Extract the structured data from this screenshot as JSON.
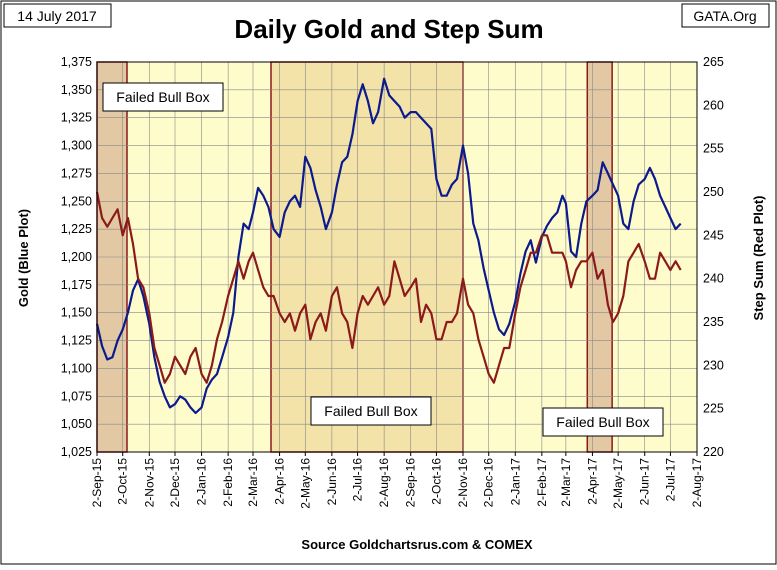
{
  "header": {
    "date_label": "14 July 2017",
    "source_tag": "GATA.Org"
  },
  "footer": {
    "source": "Source Goldchartsrus.com & COMEX"
  },
  "chart_data": {
    "type": "line",
    "title": "Daily Gold and Step Sum",
    "ylabel": "Gold   (Blue Plot)",
    "y2label": "Step Sum   (Red Plot)",
    "ylim": [
      1025,
      1375
    ],
    "y2lim": [
      220,
      265
    ],
    "yticks": [
      1025,
      1050,
      1075,
      1100,
      1125,
      1150,
      1175,
      1200,
      1225,
      1250,
      1275,
      1300,
      1325,
      1350,
      1375
    ],
    "yticks_labels": [
      "1,025",
      "1,050",
      "1,075",
      "1,100",
      "1,125",
      "1,150",
      "1,175",
      "1,200",
      "1,225",
      "1,250",
      "1,275",
      "1,300",
      "1,325",
      "1,350",
      "1,375"
    ],
    "y2ticks": [
      220,
      225,
      230,
      235,
      240,
      245,
      250,
      255,
      260,
      265
    ],
    "x_dates": [
      "2015-09-02",
      "2015-10-02",
      "2015-11-02",
      "2015-12-02",
      "2016-01-02",
      "2016-02-02",
      "2016-03-02",
      "2016-04-02",
      "2016-05-02",
      "2016-06-02",
      "2016-07-02",
      "2016-08-02",
      "2016-09-02",
      "2016-10-02",
      "2016-11-02",
      "2016-12-02",
      "2017-01-02",
      "2017-02-02",
      "2017-03-02",
      "2017-04-02",
      "2017-05-02",
      "2017-06-02",
      "2017-07-02",
      "2017-08-02"
    ],
    "x_labels": [
      "2-Sep-15",
      "2-Oct-15",
      "2-Nov-15",
      "2-Dec-15",
      "2-Jan-16",
      "2-Feb-16",
      "2-Mar-16",
      "2-Apr-16",
      "2-May-16",
      "2-Jun-16",
      "2-Jul-16",
      "2-Aug-16",
      "2-Sep-16",
      "2-Oct-16",
      "2-Nov-16",
      "2-Dec-16",
      "2-Jan-17",
      "2-Feb-17",
      "2-Mar-17",
      "2-Apr-17",
      "2-May-17",
      "2-Jun-17",
      "2-Jul-17",
      "2-Aug-17"
    ],
    "grid": true,
    "colors": {
      "plot_bg": "#fffccc",
      "box_fill": "#f4e3a8",
      "box_dark_fill": "#e2c9a3",
      "box_edge": "#8b1a1a",
      "gold_line": "#0b1a8c",
      "step_line": "#8b1a1a",
      "grid": "#888888"
    },
    "boxes": [
      {
        "start": "2015-09-02",
        "end": "2015-10-07",
        "label": "Failed Bull Box",
        "dark": true,
        "label_pos": "upper-left"
      },
      {
        "start": "2016-03-23",
        "end": "2016-11-02",
        "label": "Failed Bull Box",
        "dark": false,
        "label_pos": "lower-middle"
      },
      {
        "start": "2017-03-27",
        "end": "2017-04-25",
        "label": "Failed Bull Box",
        "dark": true,
        "label_pos": "lower-left"
      }
    ],
    "series": [
      {
        "axis": "left",
        "x": [
          "2015-09-02",
          "2015-09-08",
          "2015-09-14",
          "2015-09-20",
          "2015-09-26",
          "2015-10-02",
          "2015-10-08",
          "2015-10-14",
          "2015-10-20",
          "2015-10-26",
          "2015-11-02",
          "2015-11-08",
          "2015-11-14",
          "2015-11-20",
          "2015-11-26",
          "2015-12-02",
          "2015-12-08",
          "2015-12-14",
          "2015-12-20",
          "2015-12-26",
          "2016-01-02",
          "2016-01-08",
          "2016-01-14",
          "2016-01-20",
          "2016-01-26",
          "2016-02-02",
          "2016-02-08",
          "2016-02-14",
          "2016-02-20",
          "2016-02-26",
          "2016-03-02",
          "2016-03-08",
          "2016-03-14",
          "2016-03-20",
          "2016-03-26",
          "2016-04-02",
          "2016-04-08",
          "2016-04-14",
          "2016-04-20",
          "2016-04-26",
          "2016-05-02",
          "2016-05-08",
          "2016-05-14",
          "2016-05-20",
          "2016-05-26",
          "2016-06-02",
          "2016-06-08",
          "2016-06-14",
          "2016-06-20",
          "2016-06-26",
          "2016-07-02",
          "2016-07-08",
          "2016-07-14",
          "2016-07-20",
          "2016-07-26",
          "2016-08-02",
          "2016-08-08",
          "2016-08-14",
          "2016-08-20",
          "2016-08-26",
          "2016-09-02",
          "2016-09-08",
          "2016-09-14",
          "2016-09-20",
          "2016-09-26",
          "2016-10-02",
          "2016-10-08",
          "2016-10-14",
          "2016-10-20",
          "2016-10-26",
          "2016-11-02",
          "2016-11-08",
          "2016-11-14",
          "2016-11-20",
          "2016-11-26",
          "2016-12-02",
          "2016-12-08",
          "2016-12-14",
          "2016-12-20",
          "2016-12-26",
          "2017-01-02",
          "2017-01-08",
          "2017-01-14",
          "2017-01-20",
          "2017-01-26",
          "2017-02-02",
          "2017-02-08",
          "2017-02-14",
          "2017-02-20",
          "2017-02-26",
          "2017-03-02",
          "2017-03-08",
          "2017-03-14",
          "2017-03-20",
          "2017-03-26",
          "2017-04-02",
          "2017-04-08",
          "2017-04-14",
          "2017-04-20",
          "2017-04-26",
          "2017-05-02",
          "2017-05-08",
          "2017-05-14",
          "2017-05-20",
          "2017-05-26",
          "2017-06-02",
          "2017-06-08",
          "2017-06-14",
          "2017-06-20",
          "2017-06-26",
          "2017-07-02",
          "2017-07-08",
          "2017-07-14"
        ],
        "values": [
          1140,
          1120,
          1108,
          1110,
          1125,
          1135,
          1150,
          1170,
          1180,
          1165,
          1140,
          1110,
          1088,
          1075,
          1065,
          1068,
          1075,
          1072,
          1065,
          1060,
          1065,
          1082,
          1090,
          1095,
          1110,
          1128,
          1150,
          1200,
          1230,
          1225,
          1240,
          1262,
          1255,
          1245,
          1225,
          1218,
          1240,
          1250,
          1255,
          1245,
          1290,
          1280,
          1260,
          1245,
          1225,
          1240,
          1265,
          1285,
          1290,
          1310,
          1340,
          1355,
          1340,
          1320,
          1330,
          1360,
          1345,
          1340,
          1335,
          1325,
          1330,
          1330,
          1325,
          1320,
          1315,
          1270,
          1255,
          1255,
          1265,
          1270,
          1300,
          1275,
          1230,
          1215,
          1190,
          1170,
          1150,
          1135,
          1130,
          1140,
          1160,
          1185,
          1205,
          1215,
          1195,
          1218,
          1228,
          1235,
          1240,
          1255,
          1248,
          1205,
          1200,
          1230,
          1250,
          1255,
          1260,
          1285,
          1275,
          1265,
          1255,
          1230,
          1225,
          1250,
          1265,
          1270,
          1280,
          1270,
          1255,
          1245,
          1235,
          1225,
          1230
        ]
      },
      {
        "axis": "right",
        "x": [
          "2015-09-02",
          "2015-09-08",
          "2015-09-14",
          "2015-09-20",
          "2015-09-26",
          "2015-10-02",
          "2015-10-08",
          "2015-10-14",
          "2015-10-20",
          "2015-10-26",
          "2015-11-02",
          "2015-11-08",
          "2015-11-14",
          "2015-11-20",
          "2015-11-26",
          "2015-12-02",
          "2015-12-08",
          "2015-12-14",
          "2015-12-20",
          "2015-12-26",
          "2016-01-02",
          "2016-01-08",
          "2016-01-14",
          "2016-01-20",
          "2016-01-26",
          "2016-02-02",
          "2016-02-08",
          "2016-02-14",
          "2016-02-20",
          "2016-02-26",
          "2016-03-02",
          "2016-03-08",
          "2016-03-14",
          "2016-03-20",
          "2016-03-26",
          "2016-04-02",
          "2016-04-08",
          "2016-04-14",
          "2016-04-20",
          "2016-04-26",
          "2016-05-02",
          "2016-05-08",
          "2016-05-14",
          "2016-05-20",
          "2016-05-26",
          "2016-06-02",
          "2016-06-08",
          "2016-06-14",
          "2016-06-20",
          "2016-06-26",
          "2016-07-02",
          "2016-07-08",
          "2016-07-14",
          "2016-07-20",
          "2016-07-26",
          "2016-08-02",
          "2016-08-08",
          "2016-08-14",
          "2016-08-20",
          "2016-08-26",
          "2016-09-02",
          "2016-09-08",
          "2016-09-14",
          "2016-09-20",
          "2016-09-26",
          "2016-10-02",
          "2016-10-08",
          "2016-10-14",
          "2016-10-20",
          "2016-10-26",
          "2016-11-02",
          "2016-11-08",
          "2016-11-14",
          "2016-11-20",
          "2016-11-26",
          "2016-12-02",
          "2016-12-08",
          "2016-12-14",
          "2016-12-20",
          "2016-12-26",
          "2017-01-02",
          "2017-01-08",
          "2017-01-14",
          "2017-01-20",
          "2017-01-26",
          "2017-02-02",
          "2017-02-08",
          "2017-02-14",
          "2017-02-20",
          "2017-02-26",
          "2017-03-02",
          "2017-03-08",
          "2017-03-14",
          "2017-03-20",
          "2017-03-26",
          "2017-04-02",
          "2017-04-08",
          "2017-04-14",
          "2017-04-20",
          "2017-04-26",
          "2017-05-02",
          "2017-05-08",
          "2017-05-14",
          "2017-05-20",
          "2017-05-26",
          "2017-06-02",
          "2017-06-08",
          "2017-06-14",
          "2017-06-20",
          "2017-06-26",
          "2017-07-02",
          "2017-07-08",
          "2017-07-14"
        ],
        "values": [
          250,
          247,
          246,
          247,
          248,
          245,
          247,
          244,
          240,
          239,
          236,
          232,
          230,
          228,
          229,
          231,
          230,
          229,
          231,
          232,
          229,
          228,
          230,
          233,
          235,
          238,
          240,
          242,
          240,
          242,
          243,
          241,
          239,
          238,
          238,
          236,
          235,
          236,
          234,
          236,
          237,
          233,
          235,
          236,
          234,
          238,
          239,
          236,
          235,
          232,
          236,
          238,
          237,
          238,
          239,
          237,
          238,
          242,
          240,
          238,
          239,
          240,
          235,
          237,
          236,
          233,
          233,
          235,
          235,
          236,
          240,
          237,
          236,
          233,
          231,
          229,
          228,
          230,
          232,
          232,
          236,
          239,
          241,
          243,
          243,
          245,
          245,
          243,
          243,
          243,
          242,
          239,
          241,
          242,
          242,
          243,
          240,
          241,
          237,
          235,
          236,
          238,
          242,
          243,
          244,
          242,
          240,
          240,
          243,
          242,
          241,
          242,
          241
        ]
      }
    ]
  }
}
